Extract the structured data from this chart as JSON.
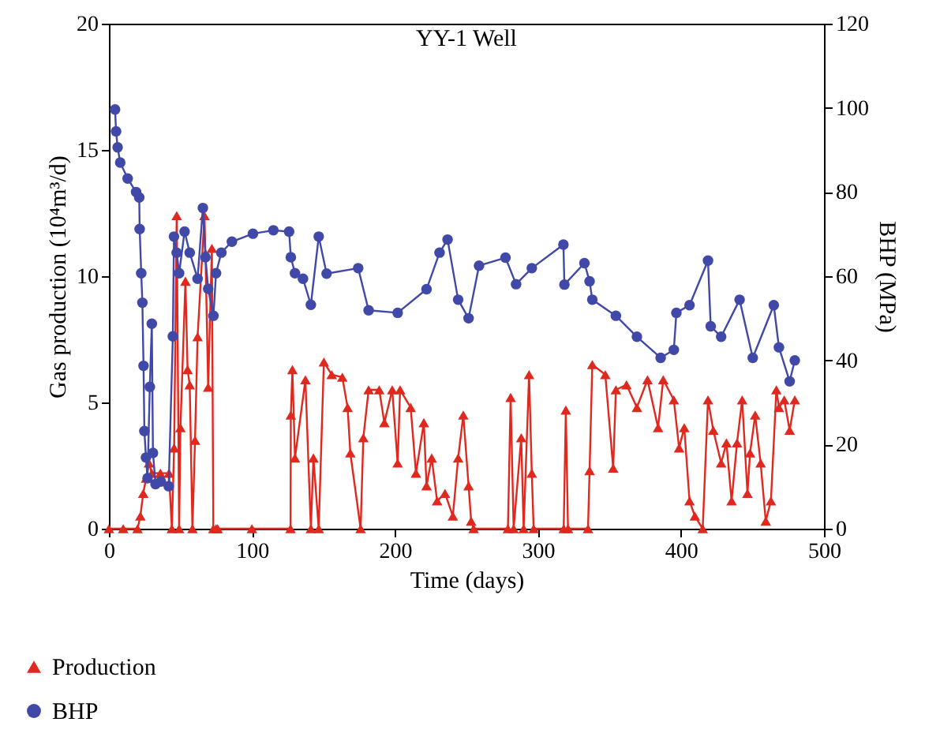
{
  "chart_data": {
    "type": "line",
    "title": "YY-1 Well",
    "xlabel": "Time (days)",
    "ylabel": "Gas production (10⁴m³/d)",
    "y2label": "BHP (MPa)",
    "xlim": [
      0,
      500
    ],
    "xticks": [
      0,
      100,
      200,
      300,
      400,
      500
    ],
    "ylim": [
      0,
      20
    ],
    "yticks": [
      0,
      5,
      10,
      15,
      20
    ],
    "y2lim": [
      0,
      120
    ],
    "y2ticks": [
      0,
      20,
      40,
      60,
      80,
      100,
      120
    ],
    "legend": "bottom",
    "grid": false,
    "series": [
      {
        "name": "Production",
        "color": "#e0281e",
        "marker": "triangle",
        "x": [
          0,
          10,
          20,
          22,
          24,
          26,
          28,
          30,
          36,
          42,
          44,
          45.6,
          47.4,
          49.1,
          50,
          53.5,
          55,
          56.5,
          58.4,
          60.2,
          62,
          66.8,
          67.5,
          69.4,
          72,
          73,
          74.9,
          76,
          100,
          127,
          127.2,
          128.3,
          130.1,
          137.4,
          141.2,
          143,
          146.7,
          150.3,
          155.8,
          163.2,
          166.9,
          168.8,
          176,
          177.9,
          181.6,
          189,
          192.6,
          198.1,
          201.9,
          203.6,
          211,
          214.7,
          220.2,
          222.1,
          225.7,
          229.5,
          235,
          240.5,
          244.2,
          247.8,
          251.5,
          253.3,
          255,
          279,
          280.9,
          283,
          288.3,
          290,
          293.8,
          295.7,
          297,
          318,
          319.5,
          321,
          335,
          336.1,
          338,
          347.1,
          352.6,
          354.5,
          361.9,
          369.2,
          376.6,
          384,
          387.6,
          395,
          398.7,
          402.3,
          406,
          409.7,
          415.2,
          418.9,
          422.6,
          428.1,
          431.8,
          435.4,
          439.2,
          442.8,
          446.5,
          448.3,
          451.9,
          455.7,
          459.3,
          462.9,
          466.7,
          468.5,
          472.2,
          476,
          479.6
        ],
        "values": [
          0,
          0,
          0,
          0.5,
          1.4,
          2,
          2.6,
          2.2,
          2.2,
          2.2,
          0,
          3.2,
          12.4,
          0,
          4,
          9.8,
          6.3,
          5.7,
          0,
          3.5,
          7.6,
          12.4,
          10.9,
          5.6,
          11.1,
          0,
          0,
          0,
          0,
          0,
          4.5,
          6.3,
          2.8,
          5.9,
          0,
          2.8,
          0,
          6.6,
          6.1,
          6,
          4.8,
          3,
          0,
          3.6,
          5.5,
          5.5,
          4.2,
          5.5,
          2.6,
          5.5,
          4.8,
          2.2,
          4.2,
          1.7,
          2.8,
          1.1,
          1.4,
          0.5,
          2.8,
          4.5,
          1.7,
          0.3,
          0,
          0,
          5.2,
          0,
          3.6,
          0,
          6.1,
          2.2,
          0,
          0,
          4.7,
          0,
          0,
          2.3,
          6.5,
          6.1,
          2.4,
          5.5,
          5.7,
          4.8,
          5.9,
          4,
          5.9,
          5.1,
          3.2,
          4,
          1.1,
          0.5,
          0,
          5.1,
          3.9,
          2.6,
          3.4,
          1.1,
          3.4,
          5.1,
          1.4,
          3,
          4.5,
          2.6,
          0.3,
          1.1,
          5.5,
          4.8,
          5.1,
          3.9,
          5.1
        ]
      },
      {
        "name": "BHP",
        "color": "#4048a8",
        "marker": "circle",
        "axis": "y2",
        "x": [
          4.3,
          5,
          6.1,
          7.9,
          13.1,
          19,
          21.2,
          21.5,
          22.6,
          23.4,
          24.2,
          24.8,
          25.9,
          27,
          28.6,
          30,
          30.8,
          32.6,
          36.3,
          41.8,
          44.7,
          45.5,
          47.4,
          49.1,
          52.9,
          56.5,
          62,
          65.7,
          67.5,
          69.4,
          73.1,
          74.9,
          78.6,
          86,
          100.7,
          115,
          126,
          127.2,
          130.1,
          135.7,
          141.2,
          146.7,
          152.2,
          174.3,
          181.6,
          201.9,
          222.1,
          231.2,
          236.8,
          244.2,
          251.5,
          258.8,
          277.3,
          284.7,
          295.7,
          317.8,
          318.5,
          332.5,
          336.1,
          338,
          354.5,
          369.2,
          385.8,
          395,
          396.8,
          406,
          418.9,
          420.8,
          428.1,
          441,
          450.2,
          464.9,
          468.5,
          476,
          479.6
        ],
        "values": [
          99.6,
          94.4,
          90.6,
          87,
          83.2,
          80,
          78.7,
          71.2,
          60.7,
          53.7,
          38.7,
          23.2,
          16.9,
          12,
          33.7,
          48.7,
          18,
          10.6,
          11.2,
          10.1,
          45.7,
          69.4,
          65.6,
          60.7,
          70.6,
          65.6,
          59.4,
          76.2,
          64.5,
          57,
          50.6,
          60.7,
          65.6,
          68.2,
          70.1,
          70.9,
          70.6,
          64.5,
          60.7,
          59.4,
          53.2,
          69.4,
          60.6,
          61.9,
          51.9,
          51.3,
          56.9,
          65.6,
          68.7,
          54.4,
          50,
          62.5,
          64.4,
          58.1,
          61.9,
          67.5,
          58,
          63.1,
          58.8,
          54.4,
          50.6,
          45.6,
          40.6,
          42.5,
          51.3,
          53.1,
          63.7,
          48.1,
          45.6,
          54.4,
          40.6,
          53.1,
          43.1,
          35,
          40
        ]
      }
    ]
  }
}
